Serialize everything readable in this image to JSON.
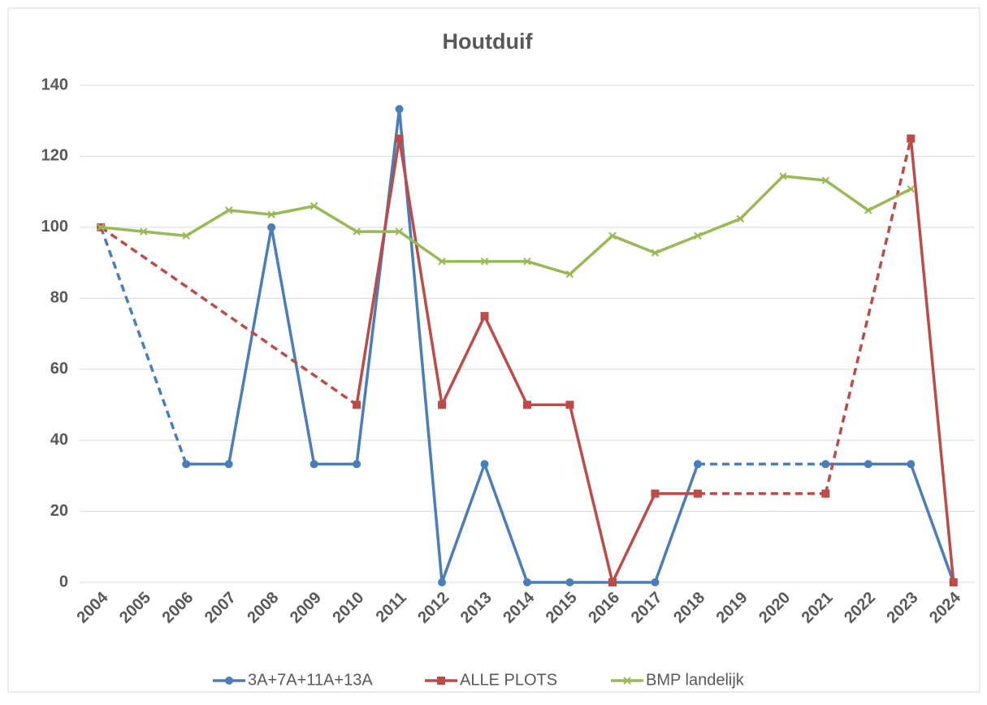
{
  "chart_data": {
    "type": "line",
    "title": "Houtduif",
    "categories": [
      "2004",
      "2005",
      "2006",
      "2007",
      "2008",
      "2009",
      "2010",
      "2011",
      "2012",
      "2013",
      "2014",
      "2015",
      "2016",
      "2017",
      "2018",
      "2019",
      "2020",
      "2021",
      "2022",
      "2023",
      "2024"
    ],
    "series": [
      {
        "name": "3A+7A+11A+13A",
        "color": "#4a7ebb",
        "marker": "circle",
        "values": [
          100,
          null,
          33.3,
          33.3,
          100,
          33.3,
          33.3,
          133.3,
          0,
          33.3,
          0,
          0,
          0,
          0,
          33.3,
          null,
          null,
          33.3,
          33.3,
          33.3,
          0
        ]
      },
      {
        "name": "ALLE PLOTS",
        "color": "#be4b48",
        "marker": "square",
        "values": [
          100,
          null,
          null,
          null,
          null,
          null,
          50,
          125,
          50,
          75,
          50,
          50,
          0,
          25,
          25,
          null,
          null,
          25,
          null,
          125,
          0
        ]
      },
      {
        "name": "BMP landelijk",
        "color": "#98b954",
        "marker": "x",
        "values": [
          100,
          98.8,
          97.6,
          104.8,
          103.6,
          106,
          98.8,
          98.8,
          90.4,
          90.4,
          90.4,
          86.8,
          97.6,
          92.8,
          97.6,
          102.4,
          114.4,
          113.2,
          104.8,
          110.8,
          null
        ]
      }
    ],
    "ylim": [
      0,
      140
    ],
    "yticks": [
      0,
      20,
      40,
      60,
      80,
      100,
      120,
      140
    ],
    "grid": true,
    "legend": "bottom"
  }
}
